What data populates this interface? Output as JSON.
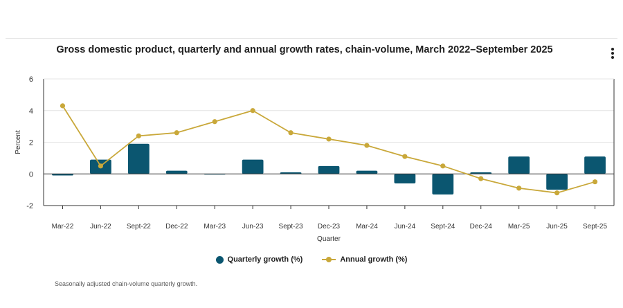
{
  "chart_title": "Gross domestic product, quarterly and annual growth rates, chain-volume, March 2022–September 2025",
  "menu": {
    "icon": "kebab-menu-icon"
  },
  "legend": {
    "quarterly_label": "Quarterly growth (%)",
    "annual_label": "Annual growth (%)"
  },
  "footnote": "Seasonally adjusted chain-volume quarterly growth.",
  "colors": {
    "bar": "#0b5670",
    "line": "#c9a83a",
    "grid": "#e4e4e4",
    "axis": "#333333"
  },
  "chart_data": {
    "type": "bar",
    "categories": [
      "Mar-22",
      "Jun-22",
      "Sept-22",
      "Dec-22",
      "Mar-23",
      "Jun-23",
      "Sept-23",
      "Dec-23",
      "Mar-24",
      "Jun-24",
      "Sept-24",
      "Dec-24",
      "Mar-25",
      "Jun-25",
      "Sept-25"
    ],
    "series": [
      {
        "name": "Quarterly growth (%)",
        "type": "bar",
        "values": [
          -0.1,
          0.9,
          1.9,
          0.2,
          0.0,
          0.9,
          0.1,
          0.5,
          0.2,
          -0.6,
          -1.3,
          0.1,
          1.1,
          -1.0,
          1.1
        ]
      },
      {
        "name": "Annual growth (%)",
        "type": "line",
        "values": [
          4.3,
          0.5,
          2.4,
          2.6,
          3.3,
          4.0,
          2.6,
          2.2,
          1.8,
          1.1,
          0.5,
          -0.3,
          -0.9,
          -1.2,
          -0.5
        ]
      }
    ],
    "xlabel": "Quarter",
    "ylabel": "Percent",
    "ylim": [
      -2,
      6
    ],
    "yticks": [
      -2,
      0,
      2,
      4,
      6
    ],
    "grid": true,
    "legend_position": "bottom-center"
  }
}
